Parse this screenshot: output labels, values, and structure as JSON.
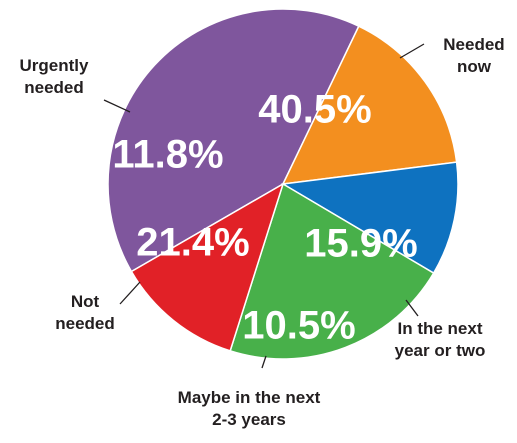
{
  "chart_data": {
    "type": "pie",
    "title": "",
    "slices": [
      {
        "label": [
          "Needed",
          "now"
        ],
        "value": 40.5,
        "display": "40.5%",
        "color": "#7f569d"
      },
      {
        "label": [
          "In the next",
          "year or two"
        ],
        "value": 15.9,
        "display": "15.9%",
        "color": "#f38f1f"
      },
      {
        "label": [
          "Maybe in the next",
          "2-3 years"
        ],
        "value": 10.5,
        "display": "10.5%",
        "color": "#0e72c0"
      },
      {
        "label": [
          "Not",
          "needed"
        ],
        "value": 21.4,
        "display": "21.4%",
        "color": "#48b04a"
      },
      {
        "label": [
          "Urgently",
          "needed"
        ],
        "value": 11.8,
        "display": "11.8%",
        "color": "#e12127"
      }
    ]
  }
}
